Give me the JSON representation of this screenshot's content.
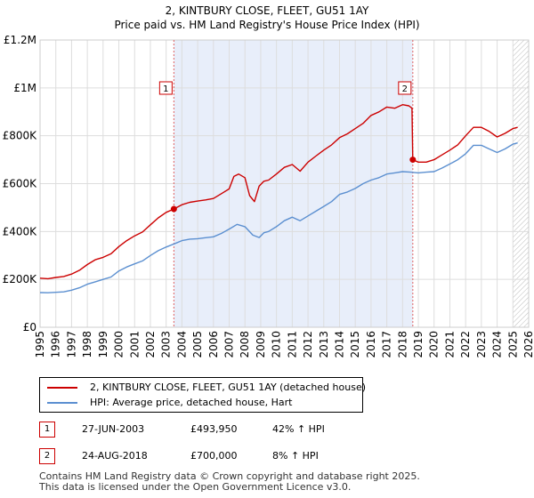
{
  "chart_data": {
    "type": "line",
    "title": "2, KINTBURY CLOSE, FLEET, GU51 1AY",
    "subtitle": "Price paid vs. HM Land Registry's House Price Index (HPI)",
    "xlim": [
      1995,
      2026
    ],
    "ylim": [
      0,
      1200000
    ],
    "x_ticks": [
      "1995",
      "1996",
      "1997",
      "1998",
      "1999",
      "2000",
      "2001",
      "2002",
      "2003",
      "2004",
      "2005",
      "2006",
      "2007",
      "2008",
      "2009",
      "2010",
      "2011",
      "2012",
      "2013",
      "2014",
      "2015",
      "2016",
      "2017",
      "2018",
      "2019",
      "2020",
      "2021",
      "2022",
      "2023",
      "2024",
      "2025",
      "2026"
    ],
    "y_ticks": [
      {
        "value": 0,
        "label": "£0"
      },
      {
        "value": 200000,
        "label": "£200K"
      },
      {
        "value": 400000,
        "label": "£400K"
      },
      {
        "value": 600000,
        "label": "£600K"
      },
      {
        "value": 800000,
        "label": "£800K"
      },
      {
        "value": 1000000,
        "label": "£1M"
      },
      {
        "value": 1200000,
        "label": "£1.2M"
      }
    ],
    "shaded_ranges": [
      {
        "start": 2003.49,
        "end": 2018.65,
        "color": "#e8eefa"
      },
      {
        "start": 2025.0,
        "end": 2026.0,
        "hatch": true
      }
    ],
    "series": [
      {
        "name": "2, KINTBURY CLOSE, FLEET, GU51 1AY (detached house)",
        "color": "#cc0000",
        "x": [
          1995.0,
          1995.5,
          1996.0,
          1996.5,
          1997.0,
          1997.5,
          1998.0,
          1998.5,
          1999.0,
          1999.5,
          2000.0,
          2000.5,
          2001.0,
          2001.5,
          2002.0,
          2002.5,
          2003.0,
          2003.49,
          2004.0,
          2004.5,
          2005.0,
          2005.5,
          2006.0,
          2006.5,
          2007.0,
          2007.3,
          2007.6,
          2008.0,
          2008.3,
          2008.6,
          2008.9,
          2009.2,
          2009.5,
          2010.0,
          2010.5,
          2011.0,
          2011.5,
          2012.0,
          2012.5,
          2013.0,
          2013.5,
          2014.0,
          2014.5,
          2015.0,
          2015.5,
          2016.0,
          2016.5,
          2017.0,
          2017.5,
          2018.0,
          2018.4,
          2018.6,
          2018.65,
          2019.0,
          2019.5,
          2020.0,
          2020.5,
          2021.0,
          2021.5,
          2022.0,
          2022.5,
          2023.0,
          2023.5,
          2024.0,
          2024.5,
          2025.0,
          2025.3
        ],
        "y": [
          205000,
          203000,
          208000,
          212000,
          222000,
          238000,
          262000,
          282000,
          292000,
          307000,
          337000,
          362000,
          382000,
          398000,
          428000,
          457000,
          480000,
          493950,
          512000,
          522000,
          527000,
          532000,
          538000,
          558000,
          578000,
          630000,
          640000,
          625000,
          550000,
          525000,
          590000,
          610000,
          615000,
          640000,
          668000,
          680000,
          652000,
          690000,
          715000,
          740000,
          762000,
          792000,
          808000,
          830000,
          852000,
          885000,
          900000,
          920000,
          915000,
          930000,
          925000,
          915000,
          700000,
          690000,
          690000,
          700000,
          720000,
          740000,
          762000,
          800000,
          835000,
          835000,
          818000,
          795000,
          810000,
          830000,
          835000
        ]
      },
      {
        "name": "HPI: Average price, detached house, Hart",
        "color": "#5b8fd0",
        "x": [
          1995.0,
          1995.5,
          1996.0,
          1996.5,
          1997.0,
          1997.5,
          1998.0,
          1998.5,
          1999.0,
          1999.5,
          2000.0,
          2000.5,
          2001.0,
          2001.5,
          2002.0,
          2002.5,
          2003.0,
          2003.5,
          2004.0,
          2004.5,
          2005.0,
          2005.5,
          2006.0,
          2006.5,
          2007.0,
          2007.5,
          2008.0,
          2008.5,
          2008.9,
          2009.2,
          2009.5,
          2010.0,
          2010.5,
          2011.0,
          2011.5,
          2012.0,
          2012.5,
          2013.0,
          2013.5,
          2014.0,
          2014.5,
          2015.0,
          2015.5,
          2016.0,
          2016.5,
          2017.0,
          2017.5,
          2018.0,
          2018.5,
          2019.0,
          2019.5,
          2020.0,
          2020.5,
          2021.0,
          2021.5,
          2022.0,
          2022.5,
          2023.0,
          2023.5,
          2024.0,
          2024.5,
          2025.0,
          2025.3
        ],
        "y": [
          145000,
          144000,
          146000,
          148000,
          155000,
          165000,
          180000,
          190000,
          200000,
          210000,
          235000,
          252000,
          265000,
          277000,
          300000,
          320000,
          335000,
          348000,
          362000,
          368000,
          370000,
          374000,
          378000,
          392000,
          410000,
          430000,
          420000,
          385000,
          375000,
          395000,
          400000,
          420000,
          445000,
          460000,
          445000,
          465000,
          485000,
          505000,
          525000,
          555000,
          565000,
          580000,
          600000,
          615000,
          625000,
          640000,
          645000,
          650000,
          648000,
          645000,
          648000,
          650000,
          665000,
          682000,
          700000,
          725000,
          760000,
          760000,
          745000,
          730000,
          745000,
          765000,
          770000
        ]
      }
    ],
    "markers": [
      {
        "label": "1",
        "x": 2003.49,
        "y": 493950,
        "series": 0
      },
      {
        "label": "2",
        "x": 2018.65,
        "y": 700000,
        "series": 0
      }
    ]
  },
  "legend": {
    "property_label": "2, KINTBURY CLOSE, FLEET, GU51 1AY (detached house)",
    "hpi_label": "HPI: Average price, detached house, Hart"
  },
  "sales": [
    {
      "num": "1",
      "date": "27-JUN-2003",
      "price": "£493,950",
      "pct": "42% ↑ HPI"
    },
    {
      "num": "2",
      "date": "24-AUG-2018",
      "price": "£700,000",
      "pct": "8% ↑ HPI"
    }
  ],
  "footer": {
    "line1": "Contains HM Land Registry data © Crown copyright and database right 2025.",
    "line2": "This data is licensed under the Open Government Licence v3.0."
  },
  "colors": {
    "property": "#cc0000",
    "hpi": "#5b8fd0",
    "shade": "#e8eefa",
    "grid": "#dddddd"
  }
}
